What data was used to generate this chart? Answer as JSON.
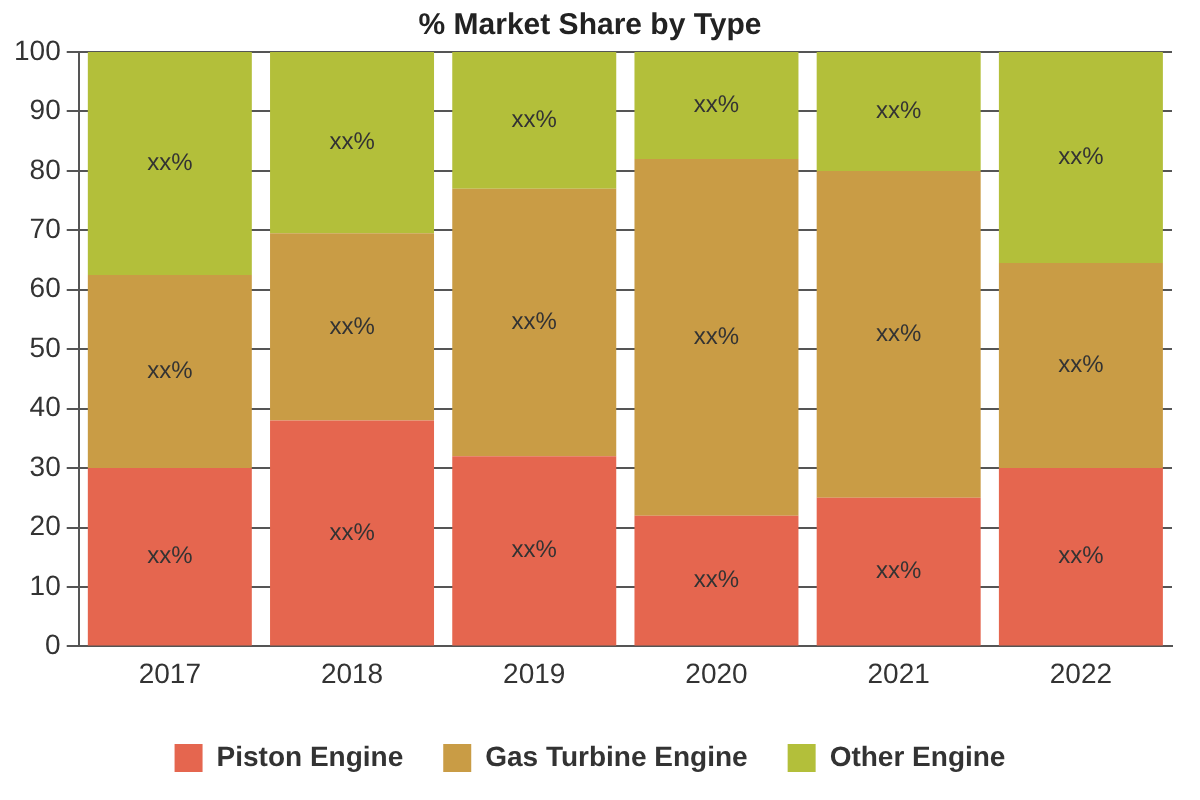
{
  "chart_data": {
    "type": "bar",
    "title": "% Market Share by Type",
    "stacked": true,
    "categories": [
      "2017",
      "2018",
      "2019",
      "2020",
      "2021",
      "2022"
    ],
    "series": [
      {
        "name": "Piston Engine",
        "color": "#e5664f",
        "values": [
          30,
          38,
          32,
          22,
          25,
          30
        ],
        "value_labels": [
          "xx%",
          "xx%",
          "xx%",
          "xx%",
          "xx%",
          "xx%"
        ]
      },
      {
        "name": "Gas Turbine Engine",
        "color": "#c99c45",
        "values": [
          32.5,
          31.5,
          45,
          60,
          55,
          34.5
        ],
        "value_labels": [
          "xx%",
          "xx%",
          "xx%",
          "xx%",
          "xx%",
          "xx%"
        ]
      },
      {
        "name": "Other Engine",
        "color": "#b3bf3a",
        "values": [
          37.5,
          30.5,
          23,
          18,
          20,
          35.5
        ],
        "value_labels": [
          "xx%",
          "xx%",
          "xx%",
          "xx%",
          "xx%",
          "xx%"
        ]
      }
    ],
    "ylim": [
      0,
      100
    ],
    "yticks": [
      0,
      10,
      20,
      30,
      40,
      50,
      60,
      70,
      80,
      90,
      100
    ],
    "grid": "y",
    "legend": "bottom"
  }
}
